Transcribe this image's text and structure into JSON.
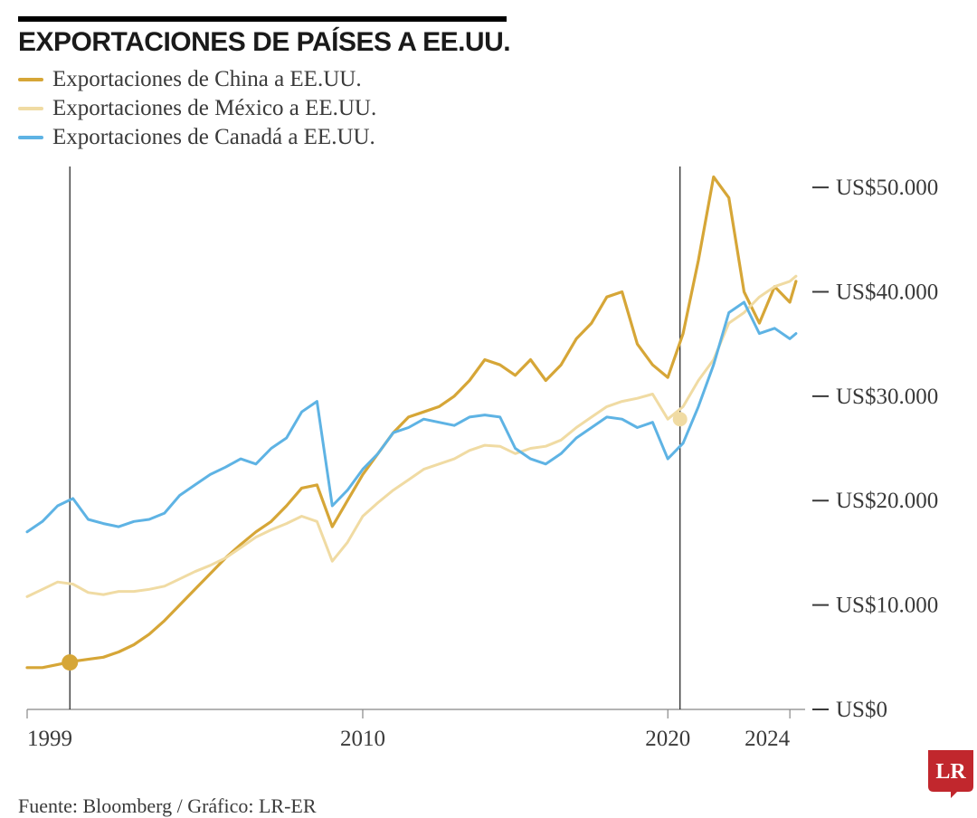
{
  "title": "EXPORTACIONES DE PAÍSES A EE.UU.",
  "source": "Fuente: Bloomberg / Gráfico: LR-ER",
  "logo_text": "LR",
  "logo_bg": "#c1272d",
  "logo_fg": "#ffffff",
  "background_color": "#ffffff",
  "title_color": "#1a1a1a",
  "text_color": "#3a3a3a",
  "top_bar_color": "#000000",
  "chart": {
    "type": "line",
    "x_range": [
      1999,
      2024.5
    ],
    "y_range": [
      0,
      52000
    ],
    "x_ticks": [
      1999,
      2010,
      2020,
      2024
    ],
    "x_tick_labels": [
      "1999",
      "2010",
      "2020",
      "2024"
    ],
    "y_ticks": [
      0,
      10000,
      20000,
      30000,
      40000,
      50000
    ],
    "y_tick_labels": [
      "US$0",
      "US$10.000",
      "US$20.000",
      "US$30.000",
      "US$40.000",
      "US$50.000"
    ],
    "y_tick_dash_color": "#3a3a3a",
    "axis_color": "#888888",
    "vlines": [
      {
        "x": 2000.4,
        "color": "#1a1a1a",
        "width": 1.2
      },
      {
        "x": 2020.4,
        "color": "#1a1a1a",
        "width": 1.2
      }
    ],
    "markers": [
      {
        "x": 2000.4,
        "y": 4500,
        "r": 9,
        "fill": "#d6a637"
      },
      {
        "x": 2020.4,
        "y": 27800,
        "r": 8,
        "fill": "#f0dba3"
      }
    ],
    "series": [
      {
        "key": "china",
        "label": "Exportaciones de China a EE.UU.",
        "color": "#d6a637",
        "width": 3.2,
        "data": [
          [
            1999,
            4000
          ],
          [
            1999.5,
            4000
          ],
          [
            2000,
            4300
          ],
          [
            2000.5,
            4600
          ],
          [
            2001,
            4800
          ],
          [
            2001.5,
            5000
          ],
          [
            2002,
            5500
          ],
          [
            2002.5,
            6200
          ],
          [
            2003,
            7200
          ],
          [
            2003.5,
            8500
          ],
          [
            2004,
            10000
          ],
          [
            2004.5,
            11500
          ],
          [
            2005,
            13000
          ],
          [
            2005.5,
            14500
          ],
          [
            2006,
            15800
          ],
          [
            2006.5,
            17000
          ],
          [
            2007,
            18000
          ],
          [
            2007.5,
            19500
          ],
          [
            2008,
            21200
          ],
          [
            2008.5,
            21500
          ],
          [
            2009,
            17500
          ],
          [
            2009.5,
            20000
          ],
          [
            2010,
            22500
          ],
          [
            2010.5,
            24500
          ],
          [
            2011,
            26500
          ],
          [
            2011.5,
            28000
          ],
          [
            2012,
            28500
          ],
          [
            2012.5,
            29000
          ],
          [
            2013,
            30000
          ],
          [
            2013.5,
            31500
          ],
          [
            2014,
            33500
          ],
          [
            2014.5,
            33000
          ],
          [
            2015,
            32000
          ],
          [
            2015.5,
            33500
          ],
          [
            2016,
            31500
          ],
          [
            2016.5,
            33000
          ],
          [
            2017,
            35500
          ],
          [
            2017.5,
            37000
          ],
          [
            2018,
            39500
          ],
          [
            2018.5,
            40000
          ],
          [
            2019,
            35000
          ],
          [
            2019.5,
            33000
          ],
          [
            2020,
            31800
          ],
          [
            2020.5,
            36000
          ],
          [
            2021,
            43000
          ],
          [
            2021.5,
            51000
          ],
          [
            2022,
            49000
          ],
          [
            2022.5,
            40000
          ],
          [
            2023,
            37000
          ],
          [
            2023.5,
            40500
          ],
          [
            2024,
            39000
          ],
          [
            2024.2,
            41000
          ]
        ]
      },
      {
        "key": "mexico",
        "label": "Exportaciones de México a EE.UU.",
        "color": "#f0dba3",
        "width": 3.0,
        "data": [
          [
            1999,
            10800
          ],
          [
            1999.5,
            11500
          ],
          [
            2000,
            12200
          ],
          [
            2000.5,
            12000
          ],
          [
            2001,
            11200
          ],
          [
            2001.5,
            11000
          ],
          [
            2002,
            11300
          ],
          [
            2002.5,
            11300
          ],
          [
            2003,
            11500
          ],
          [
            2003.5,
            11800
          ],
          [
            2004,
            12500
          ],
          [
            2004.5,
            13200
          ],
          [
            2005,
            13800
          ],
          [
            2005.5,
            14500
          ],
          [
            2006,
            15500
          ],
          [
            2006.5,
            16500
          ],
          [
            2007,
            17200
          ],
          [
            2007.5,
            17800
          ],
          [
            2008,
            18500
          ],
          [
            2008.5,
            18000
          ],
          [
            2009,
            14200
          ],
          [
            2009.5,
            16000
          ],
          [
            2010,
            18500
          ],
          [
            2010.5,
            19800
          ],
          [
            2011,
            21000
          ],
          [
            2011.5,
            22000
          ],
          [
            2012,
            23000
          ],
          [
            2012.5,
            23500
          ],
          [
            2013,
            24000
          ],
          [
            2013.5,
            24800
          ],
          [
            2014,
            25300
          ],
          [
            2014.5,
            25200
          ],
          [
            2015,
            24500
          ],
          [
            2015.5,
            25000
          ],
          [
            2016,
            25200
          ],
          [
            2016.5,
            25800
          ],
          [
            2017,
            27000
          ],
          [
            2017.5,
            28000
          ],
          [
            2018,
            29000
          ],
          [
            2018.5,
            29500
          ],
          [
            2019,
            29800
          ],
          [
            2019.5,
            30200
          ],
          [
            2020,
            27800
          ],
          [
            2020.5,
            29000
          ],
          [
            2021,
            31500
          ],
          [
            2021.5,
            33500
          ],
          [
            2022,
            37000
          ],
          [
            2022.5,
            38000
          ],
          [
            2023,
            39500
          ],
          [
            2023.5,
            40500
          ],
          [
            2024,
            41000
          ],
          [
            2024.2,
            41500
          ]
        ]
      },
      {
        "key": "canada",
        "label": "Exportaciones de Canadá a EE.UU.",
        "color": "#5eb3e4",
        "width": 3.0,
        "data": [
          [
            1999,
            17000
          ],
          [
            1999.5,
            18000
          ],
          [
            2000,
            19500
          ],
          [
            2000.5,
            20200
          ],
          [
            2001,
            18200
          ],
          [
            2001.5,
            17800
          ],
          [
            2002,
            17500
          ],
          [
            2002.5,
            18000
          ],
          [
            2003,
            18200
          ],
          [
            2003.5,
            18800
          ],
          [
            2004,
            20500
          ],
          [
            2004.5,
            21500
          ],
          [
            2005,
            22500
          ],
          [
            2005.5,
            23200
          ],
          [
            2006,
            24000
          ],
          [
            2006.5,
            23500
          ],
          [
            2007,
            25000
          ],
          [
            2007.5,
            26000
          ],
          [
            2008,
            28500
          ],
          [
            2008.5,
            29500
          ],
          [
            2009,
            19500
          ],
          [
            2009.5,
            21000
          ],
          [
            2010,
            23000
          ],
          [
            2010.5,
            24500
          ],
          [
            2011,
            26500
          ],
          [
            2011.5,
            27000
          ],
          [
            2012,
            27800
          ],
          [
            2012.5,
            27500
          ],
          [
            2013,
            27200
          ],
          [
            2013.5,
            28000
          ],
          [
            2014,
            28200
          ],
          [
            2014.5,
            28000
          ],
          [
            2015,
            25000
          ],
          [
            2015.5,
            24000
          ],
          [
            2016,
            23500
          ],
          [
            2016.5,
            24500
          ],
          [
            2017,
            26000
          ],
          [
            2017.5,
            27000
          ],
          [
            2018,
            28000
          ],
          [
            2018.5,
            27800
          ],
          [
            2019,
            27000
          ],
          [
            2019.5,
            27500
          ],
          [
            2020,
            24000
          ],
          [
            2020.5,
            25500
          ],
          [
            2021,
            29000
          ],
          [
            2021.5,
            33000
          ],
          [
            2022,
            38000
          ],
          [
            2022.5,
            39000
          ],
          [
            2023,
            36000
          ],
          [
            2023.5,
            36500
          ],
          [
            2024,
            35500
          ],
          [
            2024.2,
            36000
          ]
        ]
      }
    ]
  },
  "title_fontsize": 30,
  "legend_fontsize": 25,
  "tick_fontsize": 25,
  "source_fontsize": 22
}
